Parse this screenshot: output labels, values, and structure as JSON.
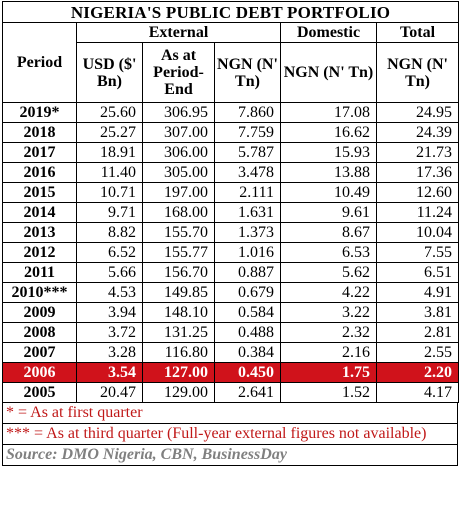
{
  "title": "NIGERIA'S PUBLIC DEBT PORTFOLIO",
  "groups": {
    "external": "External",
    "domestic": "Domestic",
    "total": "Total"
  },
  "headers": {
    "period": "Period",
    "usd": "USD ($' Bn)",
    "as_at": "As at Period-End",
    "ngn_ext": "NGN (N' Tn)",
    "ngn_dom": "NGN (N' Tn)",
    "ngn_total": "NGN (N' Tn)"
  },
  "rows": [
    {
      "period": "2019*",
      "usd": "25.60",
      "as_at": "306.95",
      "ngn_ext": "7.860",
      "domestic": "17.08",
      "total": "24.95",
      "highlight": false
    },
    {
      "period": "2018",
      "usd": "25.27",
      "as_at": "307.00",
      "ngn_ext": "7.759",
      "domestic": "16.62",
      "total": "24.39",
      "highlight": false
    },
    {
      "period": "2017",
      "usd": "18.91",
      "as_at": "306.00",
      "ngn_ext": "5.787",
      "domestic": "15.93",
      "total": "21.73",
      "highlight": false
    },
    {
      "period": "2016",
      "usd": "11.40",
      "as_at": "305.00",
      "ngn_ext": "3.478",
      "domestic": "13.88",
      "total": "17.36",
      "highlight": false
    },
    {
      "period": "2015",
      "usd": "10.71",
      "as_at": "197.00",
      "ngn_ext": "2.111",
      "domestic": "10.49",
      "total": "12.60",
      "highlight": false
    },
    {
      "period": "2014",
      "usd": "9.71",
      "as_at": "168.00",
      "ngn_ext": "1.631",
      "domestic": "9.61",
      "total": "11.24",
      "highlight": false
    },
    {
      "period": "2013",
      "usd": "8.82",
      "as_at": "155.70",
      "ngn_ext": "1.373",
      "domestic": "8.67",
      "total": "10.04",
      "highlight": false
    },
    {
      "period": "2012",
      "usd": "6.52",
      "as_at": "155.77",
      "ngn_ext": "1.016",
      "domestic": "6.53",
      "total": "7.55",
      "highlight": false
    },
    {
      "period": "2011",
      "usd": "5.66",
      "as_at": "156.70",
      "ngn_ext": "0.887",
      "domestic": "5.62",
      "total": "6.51",
      "highlight": false
    },
    {
      "period": "2010***",
      "usd": "4.53",
      "as_at": "149.85",
      "ngn_ext": "0.679",
      "domestic": "4.22",
      "total": "4.91",
      "highlight": false
    },
    {
      "period": "2009",
      "usd": "3.94",
      "as_at": "148.10",
      "ngn_ext": "0.584",
      "domestic": "3.22",
      "total": "3.81",
      "highlight": false
    },
    {
      "period": "2008",
      "usd": "3.72",
      "as_at": "131.25",
      "ngn_ext": "0.488",
      "domestic": "2.32",
      "total": "2.81",
      "highlight": false
    },
    {
      "period": "2007",
      "usd": "3.28",
      "as_at": "116.80",
      "ngn_ext": "0.384",
      "domestic": "2.16",
      "total": "2.55",
      "highlight": false
    },
    {
      "period": "2006",
      "usd": "3.54",
      "as_at": "127.00",
      "ngn_ext": "0.450",
      "domestic": "1.75",
      "total": "2.20",
      "highlight": true
    },
    {
      "period": "2005",
      "usd": "20.47",
      "as_at": "129.00",
      "ngn_ext": "2.641",
      "domestic": "1.52",
      "total": "4.17",
      "highlight": false
    }
  ],
  "notes": [
    "* = As at first quarter",
    "*** = As at third quarter (Full-year external figures not available)"
  ],
  "source": "Source: DMO Nigeria, CBN, BusinessDay",
  "colors": {
    "highlight_bg": "#d0121b",
    "note_text": "#c01818",
    "source_text": "#808080"
  }
}
